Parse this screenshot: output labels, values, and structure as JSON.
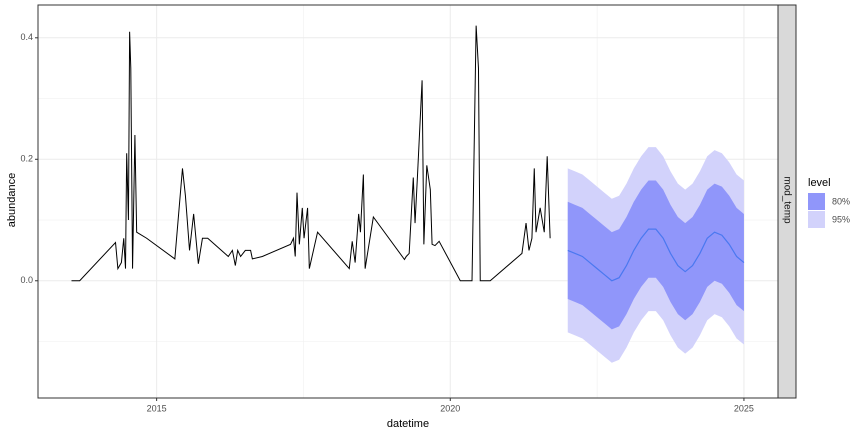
{
  "chart_data": {
    "type": "line",
    "x_label": "datetime",
    "y_label": "abundance",
    "strip": "mod_temp",
    "legend_title": "level",
    "xlim": [
      2012.98,
      2025.58
    ],
    "ylim": [
      -0.193,
      0.454
    ],
    "xticks": [
      2015,
      2020,
      2025
    ],
    "minor_xticks": [
      2017.5,
      2022.5
    ],
    "yticks": [
      {
        "value": 0,
        "label": "0.0"
      },
      {
        "value": 0.2,
        "label": "0.2"
      },
      {
        "value": 0.4,
        "label": "0.4"
      }
    ],
    "minor_yticks": [
      -0.1,
      0.1,
      0.3
    ],
    "grid": true,
    "observed": {
      "color": "#000000",
      "x": [
        2013.55,
        2013.69,
        2014.3,
        2014.34,
        2014.4,
        2014.44,
        2014.47,
        2014.49,
        2014.52,
        2014.54,
        2014.56,
        2014.59,
        2014.63,
        2014.66,
        2014.83,
        2015.31,
        2015.44,
        2015.49,
        2015.56,
        2015.63,
        2015.71,
        2015.78,
        2015.87,
        2016.22,
        2016.29,
        2016.34,
        2016.38,
        2016.43,
        2016.51,
        2016.56,
        2016.6,
        2016.63,
        2016.8,
        2017.28,
        2017.33,
        2017.36,
        2017.39,
        2017.43,
        2017.48,
        2017.51,
        2017.57,
        2017.6,
        2017.74,
        2018.28,
        2018.33,
        2018.38,
        2018.44,
        2018.47,
        2018.52,
        2018.55,
        2018.69,
        2019.22,
        2019.25,
        2019.3,
        2019.37,
        2019.4,
        2019.44,
        2019.49,
        2019.52,
        2019.55,
        2019.6,
        2019.66,
        2019.69,
        2019.74,
        2019.81,
        2020.17,
        2020.37,
        2020.44,
        2020.48,
        2020.51,
        2020.68,
        2021.22,
        2021.29,
        2021.34,
        2021.39,
        2021.43,
        2021.46,
        2021.53,
        2021.6,
        2021.65,
        2021.7
      ],
      "values": [
        0,
        0,
        0.063,
        0.02,
        0.03,
        0.07,
        0.02,
        0.21,
        0.1,
        0.41,
        0.35,
        0.02,
        0.24,
        0.08,
        0.07,
        0.036,
        0.185,
        0.14,
        0.05,
        0.11,
        0.028,
        0.07,
        0.07,
        0.04,
        0.05,
        0.025,
        0.05,
        0.04,
        0.05,
        0.05,
        0.05,
        0.036,
        0.04,
        0.06,
        0.07,
        0.04,
        0.145,
        0.06,
        0.12,
        0.07,
        0.12,
        0.02,
        0.08,
        0.02,
        0.065,
        0.03,
        0.11,
        0.08,
        0.175,
        0.02,
        0.105,
        0.035,
        0.04,
        0.045,
        0.17,
        0.095,
        0.17,
        0.27,
        0.33,
        0.06,
        0.19,
        0.15,
        0.06,
        0.058,
        0.065,
        0,
        0,
        0.42,
        0.35,
        0,
        0,
        0.045,
        0.095,
        0.05,
        0.07,
        0.185,
        0.08,
        0.12,
        0.08,
        0.205,
        0.07
      ]
    },
    "forecast": {
      "color": "#4a78f0",
      "x": [
        2022.0,
        2022.125,
        2022.25,
        2022.375,
        2022.5,
        2022.625,
        2022.75,
        2022.875,
        2023.0,
        2023.125,
        2023.25,
        2023.375,
        2023.5,
        2023.625,
        2023.75,
        2023.875,
        2024.0,
        2024.125,
        2024.25,
        2024.375,
        2024.5,
        2024.625,
        2024.75,
        2024.875,
        2025.0
      ],
      "mean": [
        0.05,
        0.045,
        0.04,
        0.03,
        0.02,
        0.01,
        0.0,
        0.005,
        0.025,
        0.05,
        0.07,
        0.085,
        0.085,
        0.07,
        0.045,
        0.025,
        0.015,
        0.025,
        0.045,
        0.07,
        0.08,
        0.075,
        0.06,
        0.04,
        0.03
      ],
      "intervals": [
        {
          "name": "95%",
          "color": "#d2d2fb",
          "lower": [
            -0.085,
            -0.09,
            -0.095,
            -0.105,
            -0.115,
            -0.125,
            -0.135,
            -0.13,
            -0.11,
            -0.085,
            -0.065,
            -0.05,
            -0.05,
            -0.065,
            -0.09,
            -0.11,
            -0.12,
            -0.11,
            -0.09,
            -0.065,
            -0.055,
            -0.06,
            -0.075,
            -0.095,
            -0.105
          ],
          "upper": [
            0.185,
            0.18,
            0.175,
            0.165,
            0.155,
            0.145,
            0.135,
            0.14,
            0.16,
            0.185,
            0.205,
            0.22,
            0.22,
            0.205,
            0.18,
            0.16,
            0.15,
            0.16,
            0.18,
            0.205,
            0.215,
            0.21,
            0.195,
            0.175,
            0.165
          ]
        },
        {
          "name": "80%",
          "color": "#9096fa",
          "lower": [
            -0.03,
            -0.035,
            -0.04,
            -0.05,
            -0.06,
            -0.07,
            -0.08,
            -0.075,
            -0.055,
            -0.03,
            -0.01,
            0.005,
            0.005,
            -0.01,
            -0.035,
            -0.055,
            -0.065,
            -0.055,
            -0.035,
            -0.01,
            0.0,
            -0.005,
            -0.02,
            -0.04,
            -0.05
          ],
          "upper": [
            0.13,
            0.125,
            0.12,
            0.11,
            0.1,
            0.09,
            0.08,
            0.085,
            0.105,
            0.13,
            0.15,
            0.165,
            0.165,
            0.15,
            0.125,
            0.105,
            0.095,
            0.105,
            0.125,
            0.15,
            0.16,
            0.155,
            0.14,
            0.12,
            0.11
          ]
        }
      ]
    }
  }
}
